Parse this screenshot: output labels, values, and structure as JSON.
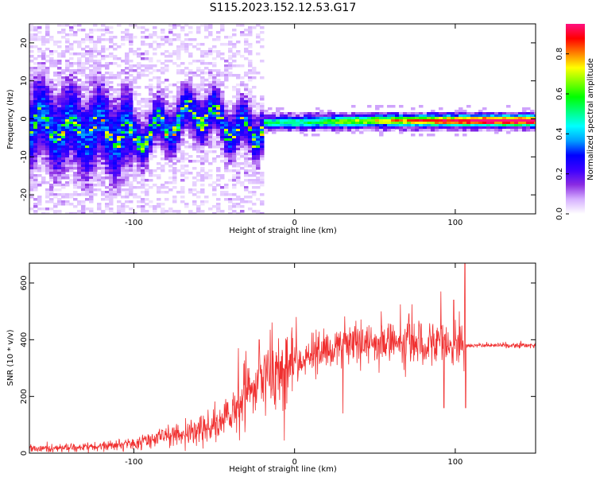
{
  "title": "S115.2023.152.12.53.G17",
  "chart_data": [
    {
      "type": "heatmap",
      "xlabel": "Height of straight line (km)",
      "ylabel": "Frequency (Hz)",
      "xlim": [
        -165,
        150
      ],
      "ylim": [
        -25,
        25
      ],
      "x_ticks": [
        -100,
        0,
        100
      ],
      "y_ticks": [
        -20,
        -10,
        0,
        10,
        20
      ],
      "colorbar": {
        "label": "Normalized spectral amplitude",
        "range": [
          0,
          0.95
        ],
        "ticks": [
          0.0,
          0.2,
          0.4,
          0.6,
          0.8
        ],
        "colors": [
          "#ffffff",
          "#d6b0ff",
          "#8a2be2",
          "#3b00ff",
          "#0000ff",
          "#00a0ff",
          "#00ffff",
          "#00ff80",
          "#00ff00",
          "#80ff00",
          "#ffff00",
          "#ff8000",
          "#ff0000",
          "#ff1080"
        ]
      },
      "ridge": [
        {
          "x": -160,
          "y": -1
        },
        {
          "x": -140,
          "y": -3
        },
        {
          "x": -120,
          "y": -3
        },
        {
          "x": -100,
          "y": -5
        },
        {
          "x": -80,
          "y": -2
        },
        {
          "x": -60,
          "y": 2
        },
        {
          "x": -40,
          "y": -2
        },
        {
          "x": -25,
          "y": -4
        },
        {
          "x": -20,
          "y": -1
        },
        {
          "x": 0,
          "y": -1
        },
        {
          "x": 50,
          "y": -0.5
        },
        {
          "x": 100,
          "y": -0.5
        },
        {
          "x": 150,
          "y": -0.5
        }
      ]
    },
    {
      "type": "line",
      "xlabel": "Height of straight line (km)",
      "ylabel": "SNR (10 * v/v)",
      "xlim": [
        -165,
        150
      ],
      "ylim": [
        0,
        670
      ],
      "x_ticks": [
        -100,
        0,
        100
      ],
      "y_ticks": [
        0,
        200,
        400,
        600
      ],
      "color": "#f03030",
      "trend": [
        {
          "x": -165,
          "y": 15
        },
        {
          "x": -120,
          "y": 22
        },
        {
          "x": -100,
          "y": 35
        },
        {
          "x": -80,
          "y": 60
        },
        {
          "x": -60,
          "y": 80
        },
        {
          "x": -45,
          "y": 110
        },
        {
          "x": -35,
          "y": 180
        },
        {
          "x": -25,
          "y": 230
        },
        {
          "x": -15,
          "y": 270
        },
        {
          "x": 0,
          "y": 320
        },
        {
          "x": 15,
          "y": 355
        },
        {
          "x": 30,
          "y": 380
        },
        {
          "x": 50,
          "y": 390
        },
        {
          "x": 70,
          "y": 395
        },
        {
          "x": 90,
          "y": 390
        },
        {
          "x": 105,
          "y": 385
        },
        {
          "x": 106,
          "y": 380
        },
        {
          "x": 150,
          "y": 380
        }
      ],
      "peaks": [
        {
          "x": -45,
          "y": 140
        },
        {
          "x": -35,
          "y": 370
        },
        {
          "x": -22,
          "y": 400
        },
        {
          "x": 1,
          "y": 480
        },
        {
          "x": 30,
          "y": 140
        },
        {
          "x": 54,
          "y": 500
        },
        {
          "x": 73,
          "y": 525
        },
        {
          "x": 91,
          "y": 570
        },
        {
          "x": 99,
          "y": 540
        },
        {
          "x": 106,
          "y": 670
        },
        {
          "x": 106.5,
          "y": 160
        },
        {
          "x": 93,
          "y": 160
        }
      ]
    }
  ]
}
